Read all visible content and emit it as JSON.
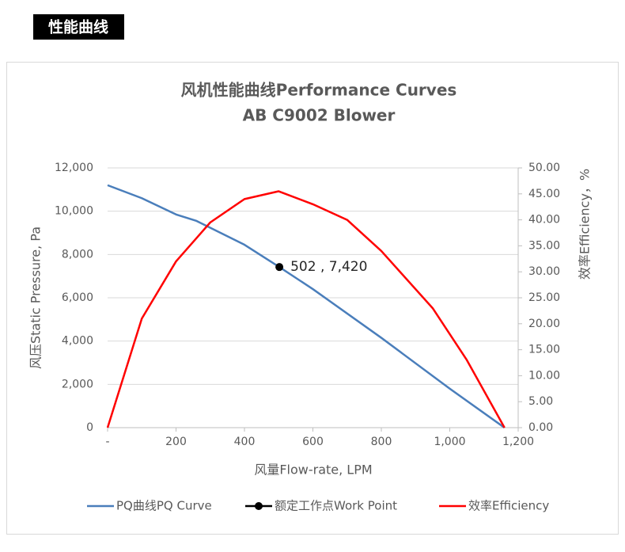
{
  "header": {
    "title": "性能曲线"
  },
  "chart_data": {
    "type": "line",
    "title": "风机性能曲线Performance Curves",
    "subtitle": "AB C9002 Blower",
    "x_label": "风量Flow-rate, LPM",
    "y_label": "风压Static Pressure, Pa",
    "y2_label": "效率Efficiency，%",
    "xlim": [
      0,
      1200
    ],
    "xticks": [
      {
        "value": 0,
        "label": "-"
      },
      200,
      400,
      600,
      800,
      {
        "value": 1000,
        "label": "1,000"
      },
      {
        "value": 1200,
        "label": "1,200"
      }
    ],
    "ylim": [
      0,
      12000
    ],
    "yticks": [
      0,
      {
        "value": 2000,
        "label": "2,000"
      },
      {
        "value": 4000,
        "label": "4,000"
      },
      {
        "value": 6000,
        "label": "6,000"
      },
      {
        "value": 8000,
        "label": "8,000"
      },
      {
        "value": 10000,
        "label": "10,000"
      },
      {
        "value": 12000,
        "label": "12,000"
      }
    ],
    "y2lim": [
      0,
      50
    ],
    "y2ticks": [
      {
        "value": 0,
        "label": "0.00"
      },
      {
        "value": 5,
        "label": "5.00"
      },
      {
        "value": 10,
        "label": "10.00"
      },
      {
        "value": 15,
        "label": "15.00"
      },
      {
        "value": 20,
        "label": "20.00"
      },
      {
        "value": 25,
        "label": "25.00"
      },
      {
        "value": 30,
        "label": "30.00"
      },
      {
        "value": 35,
        "label": "35.00"
      },
      {
        "value": 40,
        "label": "40.00"
      },
      {
        "value": 45,
        "label": "45.00"
      },
      {
        "value": 50,
        "label": "50.00"
      }
    ],
    "grid": true,
    "legend": "bottom",
    "series": [
      {
        "name": "PQ曲线PQ Curve",
        "color": "#4a7ebb",
        "x": [
          0,
          100,
          200,
          260,
          400,
          502,
          600,
          800,
          1000,
          1160
        ],
        "values": [
          11200,
          10600,
          9850,
          9550,
          8450,
          7420,
          6400,
          4150,
          1800,
          0
        ]
      },
      {
        "name": "额定工作点Work Point",
        "color": "#000000",
        "marker": true,
        "x": [
          502
        ],
        "values": [
          7420
        ],
        "value_labels": [
          "502 , 7,420"
        ]
      },
      {
        "name": "效率Efficiency",
        "color": "#ff0000",
        "axis": "y2",
        "x": [
          0,
          100,
          200,
          300,
          400,
          500,
          600,
          700,
          800,
          950,
          1050,
          1160
        ],
        "values": [
          0,
          21,
          32,
          39.5,
          44,
          45.5,
          43,
          40,
          34,
          23,
          13,
          0
        ]
      }
    ]
  }
}
